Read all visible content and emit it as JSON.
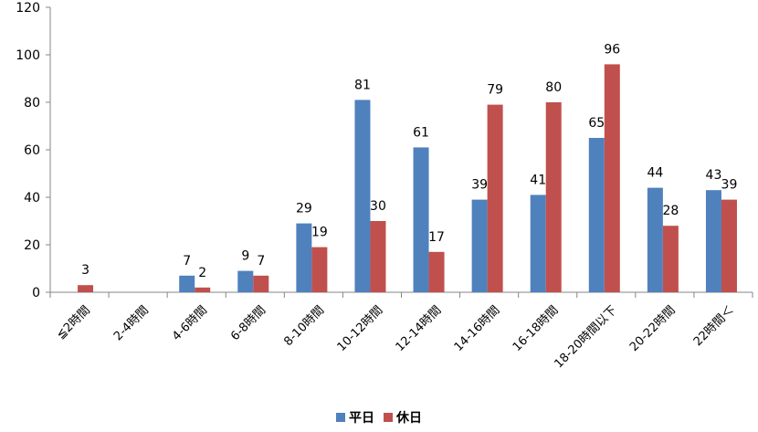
{
  "chart_data": {
    "type": "bar",
    "title": "",
    "xlabel": "",
    "ylabel": "",
    "ylim": [
      0,
      120
    ],
    "yticks": [
      0,
      20,
      40,
      60,
      80,
      100,
      120
    ],
    "categories": [
      "≦2時間",
      "2-4時間",
      "4-6時間",
      "6-8時間",
      "8-10時間",
      "10-12時間",
      "12-14時間",
      "14-16時間",
      "16-18時間",
      "18-20時間以下",
      "20-22時間",
      "22時間＜"
    ],
    "series": [
      {
        "name": "平日",
        "color": "#4F81BD",
        "values": [
          0,
          0,
          7,
          9,
          29,
          81,
          61,
          39,
          41,
          65,
          44,
          43
        ]
      },
      {
        "name": "休日",
        "color": "#C0504D",
        "values": [
          3,
          0,
          2,
          7,
          19,
          30,
          17,
          79,
          80,
          96,
          28,
          39
        ]
      }
    ],
    "data_labels": [
      [
        null,
        null,
        "7",
        "9",
        "29",
        "81",
        "61",
        "39",
        "41",
        "65",
        "44",
        "43"
      ],
      [
        "3",
        null,
        "2",
        "7",
        "19",
        "30",
        "17",
        "79",
        "80",
        "96",
        "28",
        "39"
      ]
    ],
    "legend_position": "bottom",
    "grid": false
  }
}
